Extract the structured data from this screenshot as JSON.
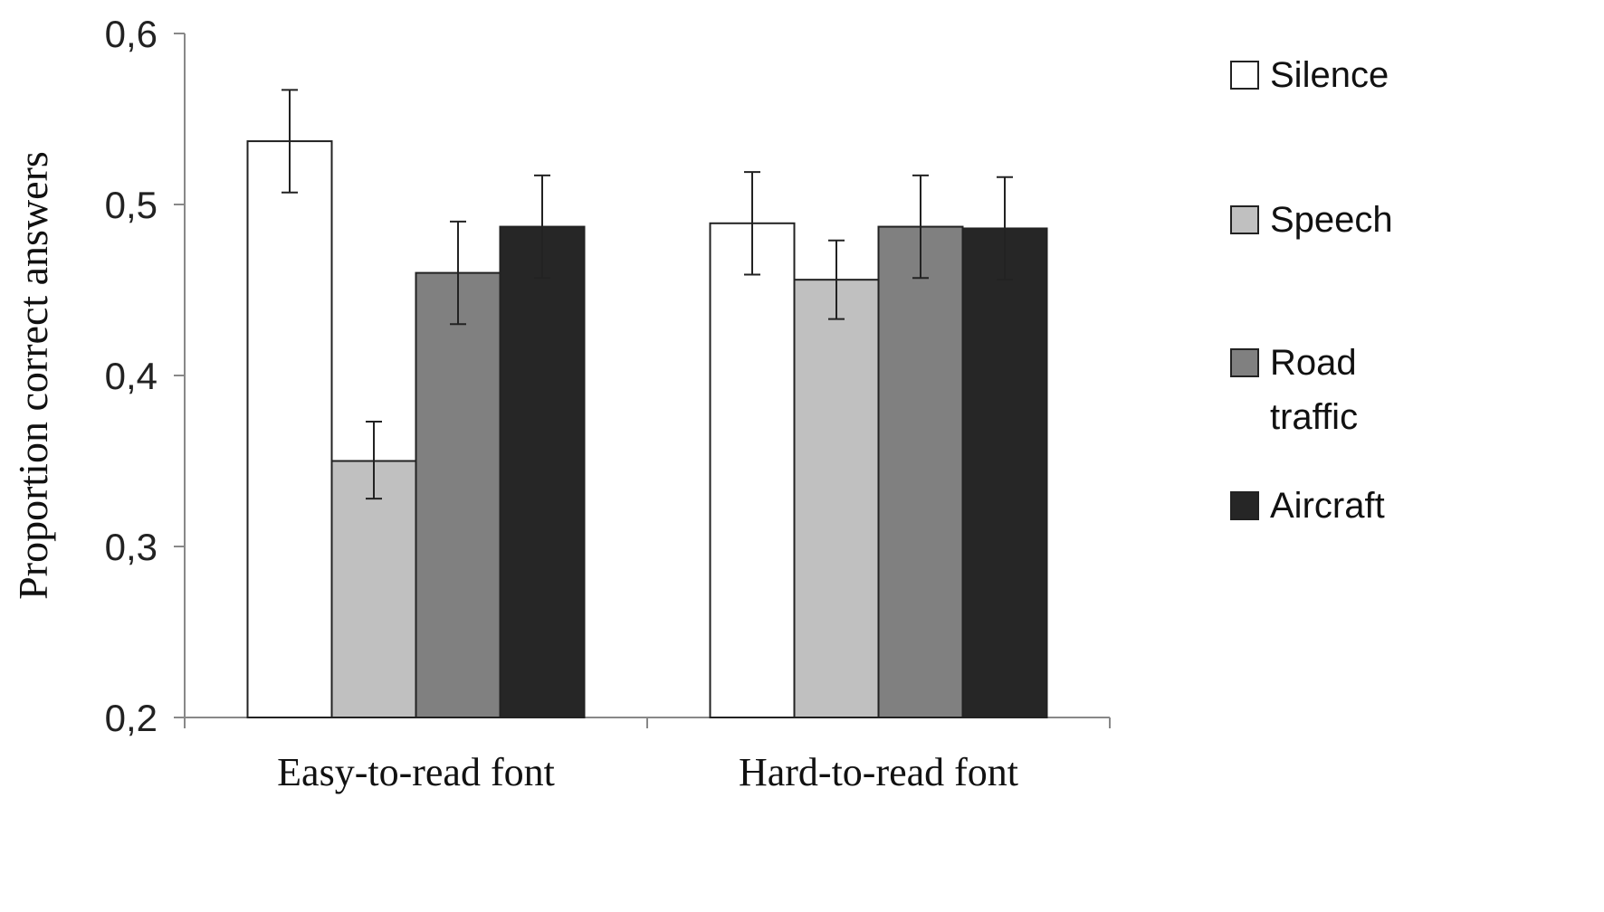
{
  "chart_data": {
    "type": "bar",
    "title": "",
    "xlabel": "",
    "ylabel": "Proportion correct answers",
    "ylim": [
      0.2,
      0.6
    ],
    "yticks": [
      "0,2",
      "0,3",
      "0,4",
      "0,5",
      "0,6"
    ],
    "ytick_values": [
      0.2,
      0.3,
      0.4,
      0.5,
      0.6
    ],
    "grid": false,
    "legend_position": "right",
    "categories": [
      "Easy-to-read font",
      "Hard-to-read font"
    ],
    "series": [
      {
        "name": "Silence",
        "color": "#ffffff",
        "values": [
          0.537,
          0.489
        ],
        "error_low": [
          0.507,
          0.459
        ],
        "error_high": [
          0.567,
          0.519
        ]
      },
      {
        "name": "Speech",
        "color": "#c0c0c0",
        "values": [
          0.35,
          0.456
        ],
        "error_low": [
          0.328,
          0.433
        ],
        "error_high": [
          0.373,
          0.479
        ]
      },
      {
        "name": "Road traffic",
        "legend_lines": [
          "Road",
          "traffic"
        ],
        "color": "#808080",
        "values": [
          0.46,
          0.487
        ],
        "error_low": [
          0.43,
          0.457
        ],
        "error_high": [
          0.49,
          0.517
        ]
      },
      {
        "name": "Aircraft",
        "color": "#262626",
        "values": [
          0.487,
          0.486
        ],
        "error_low": [
          0.457,
          0.456
        ],
        "error_high": [
          0.517,
          0.516
        ]
      }
    ]
  }
}
